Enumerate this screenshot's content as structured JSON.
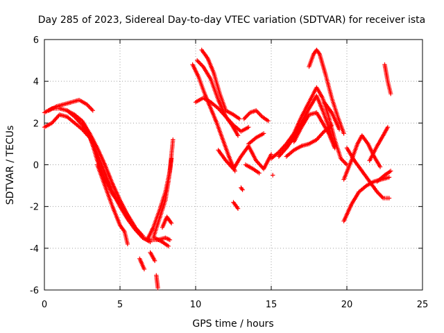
{
  "chart_data": {
    "type": "scatter",
    "title": "Day 285 of 2023, Sidereal Day-to-day VTEC variation (SDTVAR) for receiver ista",
    "xlabel": "GPS time / hours",
    "ylabel": "SDTVAR / TECUs",
    "xlim": [
      0,
      25
    ],
    "ylim": [
      -6,
      6
    ],
    "xticks": [
      "0",
      "5",
      "10",
      "15",
      "20",
      "25"
    ],
    "yticks": [
      "-6",
      "-4",
      "-2",
      "0",
      "2",
      "4",
      "6"
    ],
    "grid": true,
    "marker": "+",
    "color": "#ff0000",
    "tracks": [
      [
        [
          0.0,
          1.8
        ],
        [
          0.5,
          2.0
        ],
        [
          1.0,
          2.4
        ],
        [
          1.5,
          2.3
        ],
        [
          2.0,
          2.0
        ],
        [
          2.5,
          1.7
        ],
        [
          3.0,
          1.3
        ],
        [
          3.5,
          0.5
        ],
        [
          4.0,
          -0.4
        ],
        [
          4.5,
          -1.3
        ],
        [
          5.0,
          -2.0
        ],
        [
          5.5,
          -2.6
        ],
        [
          6.0,
          -3.1
        ],
        [
          6.5,
          -3.5
        ],
        [
          7.0,
          -3.6
        ],
        [
          7.5,
          -3.6
        ],
        [
          8.0,
          -3.5
        ],
        [
          8.3,
          -3.6
        ]
      ],
      [
        [
          0.0,
          2.5
        ],
        [
          0.5,
          2.7
        ],
        [
          1.0,
          2.7
        ],
        [
          1.5,
          2.6
        ],
        [
          2.0,
          2.4
        ],
        [
          2.5,
          2.1
        ],
        [
          3.0,
          1.5
        ],
        [
          3.5,
          0.8
        ],
        [
          4.0,
          0.0
        ],
        [
          4.5,
          -0.9
        ],
        [
          5.0,
          -1.7
        ],
        [
          5.5,
          -2.4
        ],
        [
          6.0,
          -3.0
        ],
        [
          6.5,
          -3.5
        ],
        [
          7.0,
          -3.7
        ]
      ],
      [
        [
          0.3,
          2.6
        ],
        [
          0.8,
          2.8
        ],
        [
          1.3,
          2.9
        ],
        [
          1.8,
          3.0
        ],
        [
          2.3,
          3.1
        ],
        [
          2.8,
          2.9
        ],
        [
          3.2,
          2.6
        ]
      ],
      [
        [
          1.5,
          2.6
        ],
        [
          2.0,
          2.3
        ],
        [
          2.5,
          1.9
        ],
        [
          3.0,
          1.4
        ],
        [
          3.5,
          0.2
        ],
        [
          4.0,
          -0.7
        ],
        [
          4.5,
          -1.4
        ],
        [
          5.0,
          -1.9
        ],
        [
          5.5,
          -2.4
        ],
        [
          6.0,
          -3.0
        ],
        [
          6.5,
          -3.4
        ]
      ],
      [
        [
          3.5,
          0.0
        ],
        [
          4.0,
          -1.0
        ],
        [
          4.5,
          -2.0
        ],
        [
          5.0,
          -2.9
        ],
        [
          5.3,
          -3.2
        ],
        [
          5.5,
          -3.8
        ]
      ],
      [
        [
          6.3,
          -4.5
        ],
        [
          6.6,
          -5.0
        ]
      ],
      [
        [
          7.0,
          -4.2
        ],
        [
          7.3,
          -4.6
        ]
      ],
      [
        [
          7.4,
          -5.3
        ],
        [
          7.5,
          -5.9
        ]
      ],
      [
        [
          6.8,
          -3.6
        ],
        [
          7.2,
          -3.0
        ],
        [
          7.6,
          -2.2
        ],
        [
          8.0,
          -1.3
        ],
        [
          8.3,
          -0.3
        ],
        [
          8.5,
          1.2
        ]
      ],
      [
        [
          7.2,
          -3.5
        ],
        [
          7.6,
          -2.6
        ],
        [
          8.0,
          -1.7
        ],
        [
          8.2,
          -0.8
        ],
        [
          8.4,
          0.3
        ]
      ],
      [
        [
          7.8,
          -3.0
        ],
        [
          8.1,
          -2.5
        ],
        [
          8.4,
          -2.8
        ]
      ],
      [
        [
          7.3,
          -3.5
        ],
        [
          7.8,
          -3.7
        ],
        [
          8.2,
          -3.9
        ]
      ],
      [
        [
          9.8,
          4.8
        ],
        [
          10.2,
          4.2
        ],
        [
          10.6,
          3.4
        ],
        [
          11.0,
          2.7
        ],
        [
          11.4,
          2.0
        ],
        [
          11.8,
          1.2
        ],
        [
          12.2,
          0.4
        ],
        [
          12.6,
          -0.3
        ]
      ],
      [
        [
          10.1,
          5.0
        ],
        [
          10.5,
          4.7
        ],
        [
          11.0,
          4.1
        ],
        [
          11.5,
          3.1
        ],
        [
          12.0,
          2.3
        ],
        [
          12.4,
          1.9
        ],
        [
          12.8,
          1.4
        ]
      ],
      [
        [
          10.4,
          5.5
        ],
        [
          10.8,
          5.1
        ],
        [
          11.2,
          4.4
        ],
        [
          11.6,
          3.4
        ],
        [
          12.0,
          2.6
        ],
        [
          12.5,
          2.4
        ],
        [
          12.9,
          2.2
        ]
      ],
      [
        [
          10.0,
          3.0
        ],
        [
          10.5,
          3.2
        ],
        [
          11.0,
          3.0
        ],
        [
          11.5,
          2.7
        ],
        [
          12.0,
          2.3
        ],
        [
          12.5,
          1.9
        ],
        [
          13.0,
          1.6
        ],
        [
          13.5,
          1.8
        ]
      ],
      [
        [
          11.5,
          0.7
        ],
        [
          12.0,
          0.2
        ],
        [
          12.5,
          -0.2
        ],
        [
          13.0,
          0.4
        ],
        [
          13.5,
          0.9
        ],
        [
          14.0,
          0.2
        ],
        [
          14.5,
          -0.2
        ],
        [
          15.0,
          0.5
        ]
      ],
      [
        [
          12.5,
          -1.8
        ],
        [
          12.8,
          -2.1
        ]
      ],
      [
        [
          13.0,
          -1.1
        ],
        [
          13.1,
          -1.2
        ]
      ],
      [
        [
          13.2,
          2.2
        ],
        [
          13.6,
          2.5
        ],
        [
          14.0,
          2.6
        ],
        [
          14.4,
          2.3
        ],
        [
          14.8,
          2.1
        ]
      ],
      [
        [
          13.5,
          1.0
        ],
        [
          14.0,
          1.3
        ],
        [
          14.5,
          1.5
        ]
      ],
      [
        [
          13.3,
          0.0
        ],
        [
          13.8,
          -0.2
        ],
        [
          14.2,
          -0.4
        ]
      ],
      [
        [
          15.0,
          0.3
        ],
        [
          15.5,
          0.6
        ],
        [
          16.0,
          1.0
        ],
        [
          16.5,
          1.5
        ],
        [
          17.0,
          2.3
        ],
        [
          17.5,
          3.0
        ],
        [
          18.0,
          3.7
        ],
        [
          18.4,
          3.2
        ],
        [
          18.8,
          2.3
        ],
        [
          19.2,
          1.2
        ],
        [
          19.6,
          0.3
        ],
        [
          20.0,
          0.0
        ]
      ],
      [
        [
          15.5,
          0.4
        ],
        [
          16.0,
          0.8
        ],
        [
          16.5,
          1.3
        ],
        [
          17.0,
          2.0
        ],
        [
          17.5,
          2.7
        ],
        [
          18.0,
          3.3
        ],
        [
          18.4,
          2.6
        ],
        [
          18.8,
          1.8
        ],
        [
          19.2,
          0.9
        ]
      ],
      [
        [
          16.5,
          1.1
        ],
        [
          17.0,
          1.8
        ],
        [
          17.5,
          2.4
        ],
        [
          18.0,
          2.5
        ],
        [
          18.4,
          2.0
        ],
        [
          18.8,
          1.5
        ],
        [
          19.2,
          0.8
        ]
      ],
      [
        [
          16.0,
          0.4
        ],
        [
          16.5,
          0.7
        ],
        [
          17.0,
          0.9
        ],
        [
          17.5,
          1.0
        ],
        [
          18.0,
          1.2
        ],
        [
          18.5,
          1.6
        ],
        [
          19.0,
          1.9
        ]
      ],
      [
        [
          17.5,
          4.7
        ],
        [
          17.8,
          5.3
        ],
        [
          18.0,
          5.5
        ],
        [
          18.2,
          5.3
        ],
        [
          18.6,
          4.3
        ],
        [
          19.0,
          3.2
        ],
        [
          19.4,
          2.3
        ],
        [
          19.8,
          1.5
        ]
      ],
      [
        [
          18.5,
          3.0
        ],
        [
          19.0,
          2.5
        ],
        [
          19.5,
          1.7
        ]
      ],
      [
        [
          19.8,
          -0.7
        ],
        [
          20.3,
          0.2
        ],
        [
          20.7,
          1.0
        ],
        [
          21.0,
          1.4
        ],
        [
          21.4,
          1.0
        ],
        [
          21.8,
          0.4
        ],
        [
          22.2,
          -0.1
        ]
      ],
      [
        [
          20.0,
          0.8
        ],
        [
          20.5,
          0.2
        ],
        [
          21.0,
          -0.3
        ],
        [
          21.5,
          -0.8
        ],
        [
          22.0,
          -1.3
        ],
        [
          22.4,
          -1.6
        ],
        [
          22.8,
          -1.6
        ]
      ],
      [
        [
          19.8,
          -2.7
        ],
        [
          20.3,
          -1.9
        ],
        [
          20.8,
          -1.3
        ],
        [
          21.3,
          -1.0
        ],
        [
          21.8,
          -0.8
        ],
        [
          22.3,
          -0.7
        ],
        [
          22.8,
          -0.6
        ]
      ],
      [
        [
          21.5,
          0.2
        ],
        [
          22.0,
          0.9
        ],
        [
          22.4,
          1.4
        ],
        [
          22.7,
          1.8
        ]
      ],
      [
        [
          22.0,
          -0.8
        ],
        [
          22.5,
          -0.5
        ],
        [
          22.9,
          -0.3
        ]
      ],
      [
        [
          22.5,
          4.8
        ],
        [
          22.7,
          4.0
        ],
        [
          22.9,
          3.4
        ]
      ],
      [
        [
          15.1,
          -0.5
        ],
        [
          15.1,
          -0.5
        ]
      ]
    ]
  }
}
